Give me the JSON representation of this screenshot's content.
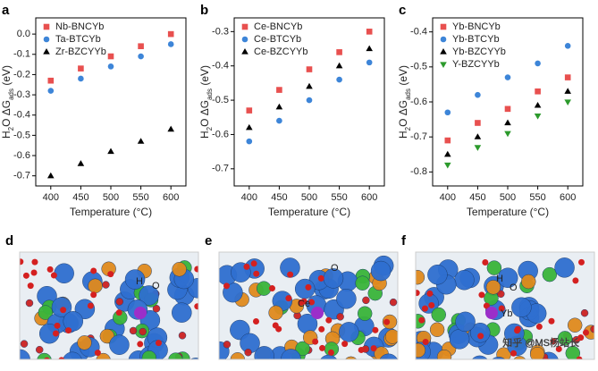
{
  "chart_data": [
    {
      "type": "scatter",
      "panel_label": "a",
      "x_label": "Temperature (°C)",
      "y_label": [
        "H",
        "2",
        "O ΔG",
        "ads",
        " (eV)"
      ],
      "x": [
        400,
        450,
        500,
        550,
        600
      ],
      "xlim": [
        375,
        625
      ],
      "xticks": [
        400,
        450,
        500,
        550,
        600
      ],
      "ylim": [
        -0.75,
        0.08
      ],
      "yticks": [
        {
          "value": 0,
          "label": "0.0"
        },
        -0.1,
        -0.2,
        -0.3,
        -0.4,
        -0.5,
        -0.6,
        -0.7
      ],
      "legend": "upper left",
      "series": [
        {
          "name": "Nb-BNCYb",
          "color": "#e8504f",
          "marker": "square",
          "values": [
            -0.23,
            -0.17,
            -0.11,
            -0.06,
            0.0
          ]
        },
        {
          "name": "Ta-BTCYb",
          "color": "#3d85d8",
          "marker": "circle",
          "values": [
            -0.28,
            -0.22,
            -0.16,
            -0.11,
            -0.05
          ]
        },
        {
          "name": "Zr-BZCYYb",
          "color": "#000000",
          "marker": "triangle",
          "values": [
            -0.7,
            -0.64,
            -0.58,
            -0.53,
            -0.47
          ]
        }
      ]
    },
    {
      "type": "scatter",
      "panel_label": "b",
      "x_label": "Temperature (°C)",
      "y_label": [
        "H",
        "2",
        "O ΔG",
        "ads",
        " (eV)"
      ],
      "x": [
        400,
        450,
        500,
        550,
        600
      ],
      "xlim": [
        375,
        625
      ],
      "xticks": [
        400,
        450,
        500,
        550,
        600
      ],
      "ylim": [
        -0.75,
        -0.26
      ],
      "yticks": [
        -0.3,
        -0.4,
        -0.5,
        -0.6,
        -0.7
      ],
      "legend": "upper left",
      "series": [
        {
          "name": "Ce-BNCYb",
          "color": "#e8504f",
          "marker": "square",
          "values": [
            -0.53,
            -0.47,
            -0.41,
            -0.36,
            -0.3
          ]
        },
        {
          "name": "Ce-BTCYb",
          "color": "#3d85d8",
          "marker": "circle",
          "values": [
            -0.62,
            -0.56,
            -0.5,
            -0.44,
            -0.39
          ]
        },
        {
          "name": "Ce-BZCYYb",
          "color": "#000000",
          "marker": "triangle",
          "values": [
            -0.58,
            -0.52,
            -0.46,
            -0.4,
            -0.35
          ]
        }
      ]
    },
    {
      "type": "scatter",
      "panel_label": "c",
      "x_label": "Temperature (°C)",
      "y_label": [
        "H",
        "2",
        "O ΔG",
        "ads",
        " (eV)"
      ],
      "x": [
        400,
        450,
        500,
        550,
        600
      ],
      "xlim": [
        375,
        625
      ],
      "xticks": [
        400,
        450,
        500,
        550,
        600
      ],
      "ylim": [
        -0.84,
        -0.36
      ],
      "yticks": [
        -0.4,
        -0.5,
        -0.6,
        -0.7,
        -0.8
      ],
      "legend": "upper left",
      "series": [
        {
          "name": "Yb-BNCYb",
          "color": "#e8504f",
          "marker": "square",
          "values": [
            -0.71,
            -0.66,
            -0.62,
            -0.57,
            -0.53
          ]
        },
        {
          "name": "Yb-BTCYb",
          "color": "#3d85d8",
          "marker": "circle",
          "values": [
            -0.63,
            -0.58,
            -0.53,
            -0.49,
            -0.44
          ]
        },
        {
          "name": "Yb-BZCYYb",
          "color": "#000000",
          "marker": "triangle",
          "values": [
            -0.75,
            -0.7,
            -0.66,
            -0.61,
            -0.57
          ]
        },
        {
          "name": "Y-BZCYYb",
          "color": "#2c9a2c",
          "marker": "triangle-down",
          "values": [
            -0.78,
            -0.73,
            -0.69,
            -0.64,
            -0.6
          ]
        }
      ]
    }
  ],
  "images": [
    {
      "panel_label": "d",
      "labels": [
        "H",
        "O"
      ]
    },
    {
      "panel_label": "e",
      "labels": [
        "O",
        "Ce"
      ]
    },
    {
      "panel_label": "f",
      "labels": [
        "H",
        "O",
        "Yb"
      ]
    }
  ],
  "watermark": "知乎 @MS杨站长"
}
